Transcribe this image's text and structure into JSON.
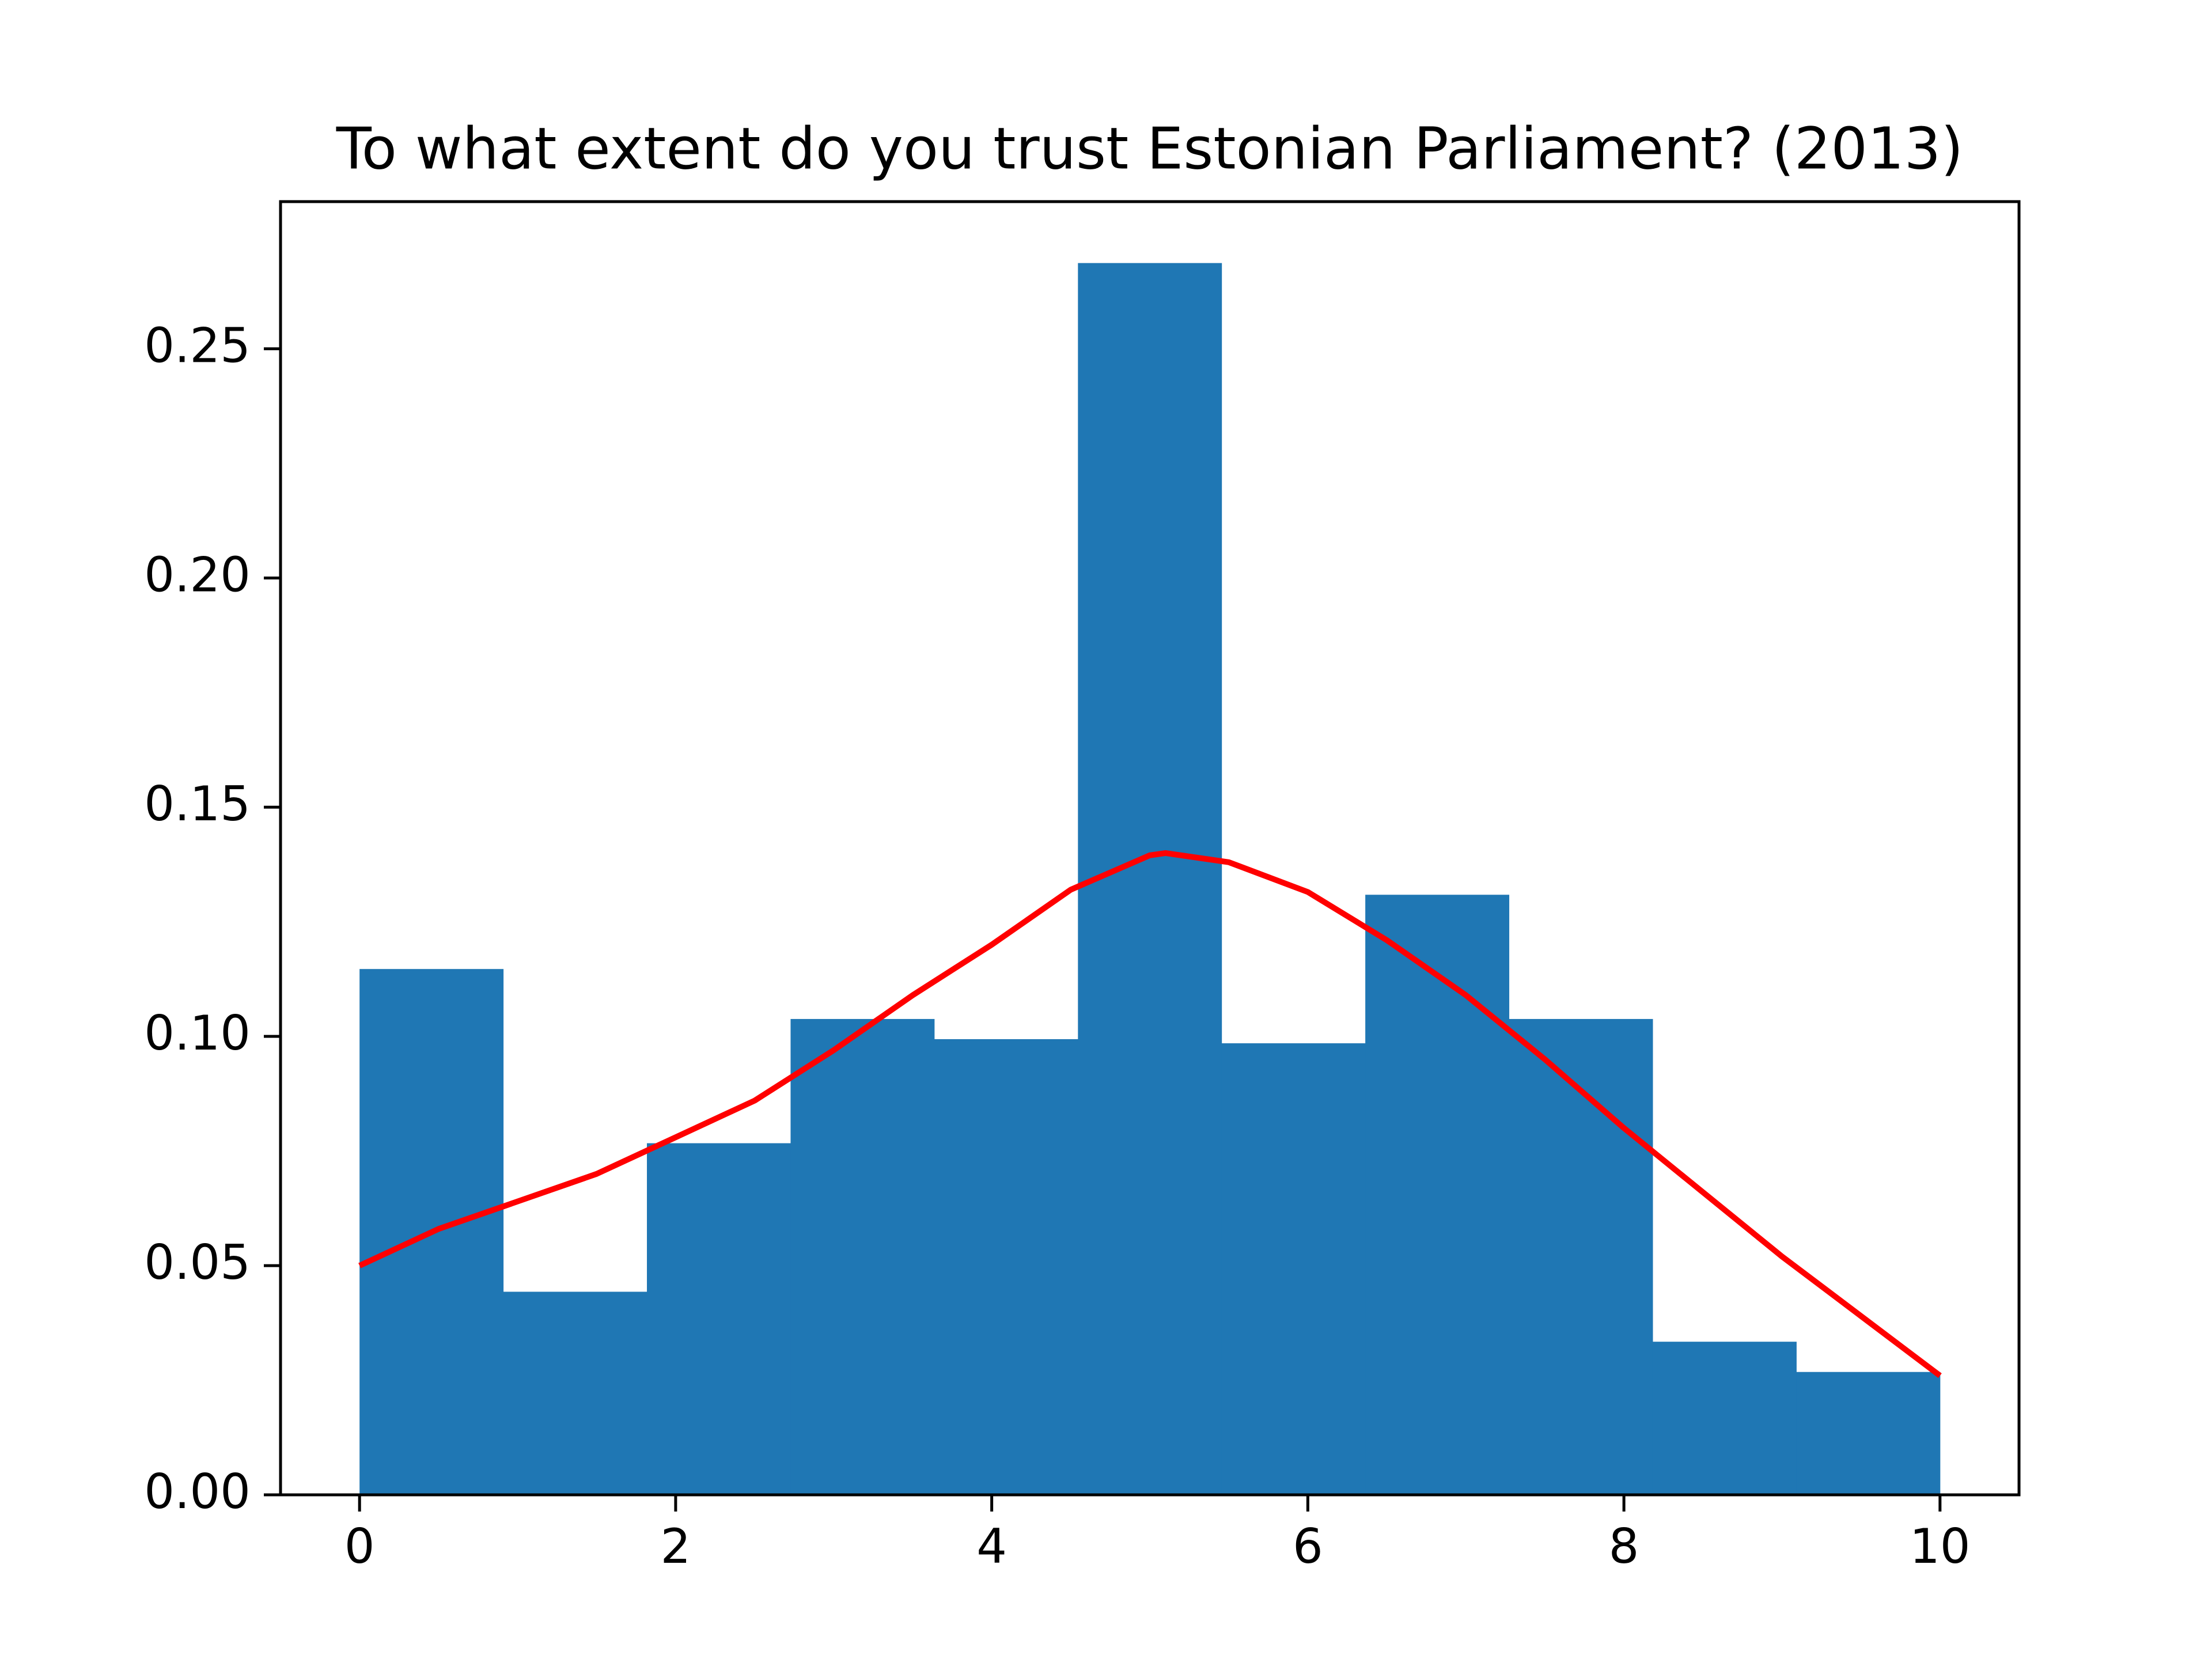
{
  "chart_data": {
    "type": "histogram",
    "title": "To what extent do you trust Estonian Parliament? (2013)",
    "bins": [
      0,
      0.9091,
      1.8182,
      2.7273,
      3.6364,
      4.5455,
      5.4545,
      6.3636,
      7.2727,
      8.1818,
      9.0909,
      10
    ],
    "values": [
      0.1147,
      0.0443,
      0.0767,
      0.1038,
      0.0994,
      0.2687,
      0.0985,
      0.1309,
      0.1038,
      0.0334,
      0.0268
    ],
    "color": "#1f77b4",
    "kde": {
      "x": [
        0,
        0.5,
        1,
        1.5,
        2,
        2.5,
        3,
        3.5,
        4,
        4.5,
        5,
        5.1,
        5.5,
        6,
        6.5,
        7,
        7.5,
        8,
        8.5,
        9,
        9.5,
        10
      ],
      "values": [
        0.05,
        0.058,
        0.064,
        0.07,
        0.078,
        0.086,
        0.097,
        0.109,
        0.12,
        0.132,
        0.1395,
        0.14,
        0.138,
        0.1315,
        0.121,
        0.109,
        0.095,
        0.08,
        0.066,
        0.052,
        0.039,
        0.026
      ],
      "color": "#ff0000"
    },
    "xlim": [
      -0.5,
      10.5
    ],
    "ylim": [
      0,
      0.2821
    ],
    "xticks": [
      0,
      2,
      4,
      6,
      8,
      10
    ],
    "yticks": [
      {
        "value": 0,
        "label": "0.00"
      },
      0.05,
      {
        "value": 0.1,
        "label": "0.10"
      },
      0.15,
      {
        "value": 0.2,
        "label": "0.20"
      },
      0.25
    ]
  }
}
